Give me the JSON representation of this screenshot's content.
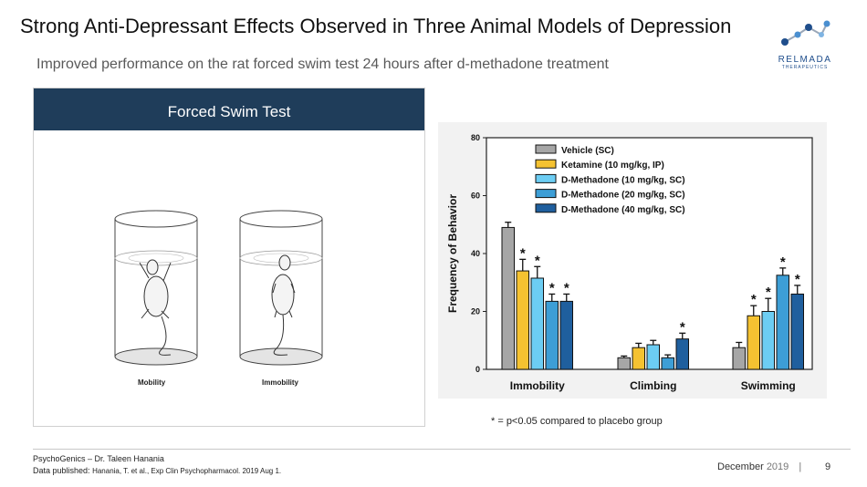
{
  "header": {
    "title": "Strong Anti-Depressant Effects Observed in Three Animal Models of Depression",
    "subtitle": "Improved performance on the rat forced swim test 24 hours after d-methadone treatment"
  },
  "logo": {
    "name": "RELMADA",
    "tagline": "THERAPEUTICS"
  },
  "panel": {
    "heading": "Forced Swim Test",
    "left_label": "Mobility",
    "right_label": "Immobility"
  },
  "chart_data": {
    "type": "bar",
    "ylabel": "Frequency of Behavior",
    "ylim": [
      0,
      80
    ],
    "yticks": [
      "0",
      "20",
      "40",
      "60",
      "80"
    ],
    "categories": [
      "Immobility",
      "Climbing",
      "Swimming"
    ],
    "legend_position": "top-center",
    "series": [
      {
        "name": "Vehicle (SC)",
        "color": "#a6a6a6",
        "values": [
          49,
          4,
          7.5
        ],
        "errors": [
          1.8,
          0.6,
          1.8
        ],
        "stars": [
          false,
          false,
          false
        ]
      },
      {
        "name": "Ketamine (10 mg/kg, IP)",
        "color": "#f5c231",
        "values": [
          34,
          7.5,
          18.5
        ],
        "errors": [
          4,
          1.5,
          3.5
        ],
        "stars": [
          true,
          false,
          true
        ]
      },
      {
        "name": "D-Methadone (10 mg/kg, SC)",
        "color": "#6ccdf3",
        "values": [
          31.5,
          8.5,
          20
        ],
        "errors": [
          4,
          1.5,
          4.5
        ],
        "stars": [
          true,
          false,
          true
        ]
      },
      {
        "name": "D-Methadone (20 mg/kg, SC)",
        "color": "#3d9ed6",
        "values": [
          23.5,
          4,
          32.5
        ],
        "errors": [
          2.5,
          1,
          2.5
        ],
        "stars": [
          true,
          false,
          true
        ]
      },
      {
        "name": "D-Methadone (40 mg/kg, SC)",
        "color": "#1f5f9e",
        "values": [
          23.5,
          10.5,
          26
        ],
        "errors": [
          2.5,
          2,
          3
        ],
        "stars": [
          true,
          true,
          true
        ]
      }
    ],
    "star_symbol": "*"
  },
  "footnote": "*  = p<0.05 compared to placebo group",
  "footer": {
    "credit_line1": "PsychoGenics – Dr. Taleen Hanania",
    "credit_line2_label": "Data published:",
    "credit_line2_source": "Hanania, T. et al., Exp Clin Psychopharmacol. 2019 Aug 1.",
    "month": "December",
    "year": "2019",
    "separator": "|",
    "page": "9"
  }
}
